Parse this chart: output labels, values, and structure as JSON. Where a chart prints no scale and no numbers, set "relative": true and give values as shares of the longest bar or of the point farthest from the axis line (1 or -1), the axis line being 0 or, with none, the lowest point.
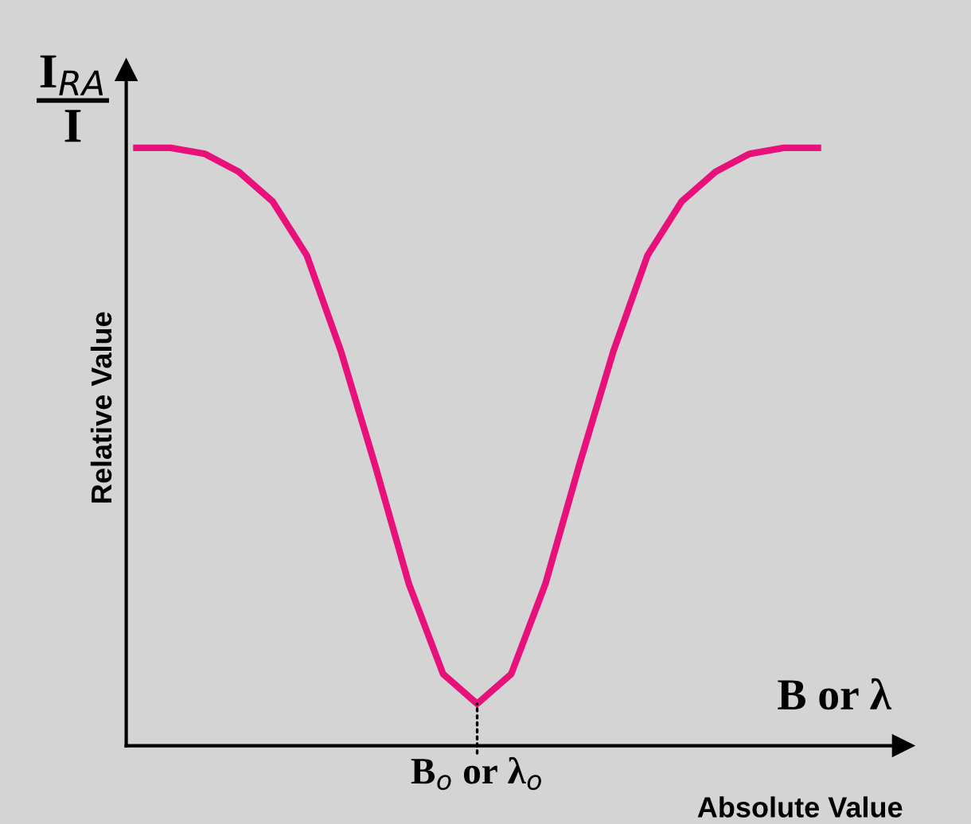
{
  "chart_data": {
    "type": "line",
    "relative": true,
    "ylabel": "Relative Value",
    "xlabel": "Absolute Value",
    "annotations": [
      "I$_{RA}$\nI",
      "B or λ",
      {
        "text": "B$_{o}$ or λ$_{o}$",
        "y": 0.07
      }
    ],
    "categories": [
      null,
      null,
      null,
      null,
      null,
      null,
      null,
      null,
      null,
      null,
      null,
      null,
      null,
      null,
      null,
      null,
      null,
      null,
      null,
      null,
      null
    ],
    "series": [
      {
        "color": "#e8107a",
        "values": [
          1.0,
          1.0,
          0.99,
          0.96,
          0.91,
          0.82,
          0.66,
          0.47,
          0.27,
          0.12,
          0.07,
          0.12,
          0.27,
          0.47,
          0.66,
          0.82,
          0.91,
          0.96,
          0.99,
          1.0,
          1.0
        ]
      }
    ],
    "marker": "none",
    "line_style": "solid"
  }
}
